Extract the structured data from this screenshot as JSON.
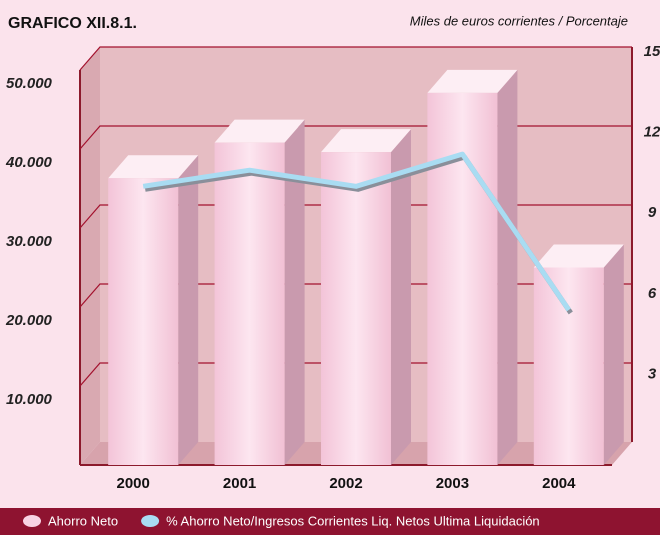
{
  "chart_data": {
    "type": "bar",
    "title": "GRAFICO XII.8.1.",
    "subtitle": "Miles de euros corrientes / Porcentaje",
    "categories": [
      "2000",
      "2001",
      "2002",
      "2003",
      "2004"
    ],
    "series": [
      {
        "name": "Ahorro Neto",
        "color": "#f8d3e3",
        "values": [
          36300,
          40800,
          39600,
          47100,
          25000
        ]
      },
      {
        "name": "% Ahorro Neto/Ingresos Corrientes Liq. Netos Ultima Liquidación",
        "color": "#a9dcf2",
        "type": "line",
        "axis": "y2",
        "values": [
          10.0,
          10.6,
          10.0,
          11.2,
          5.4
        ]
      }
    ],
    "ylim": [
      0,
      50000
    ],
    "yticks": [
      {
        "value": 10000,
        "label": "10.000"
      },
      {
        "value": 20000,
        "label": "20.000"
      },
      {
        "value": 30000,
        "label": "30.000"
      },
      {
        "value": 40000,
        "label": "40.000"
      },
      {
        "value": 50000,
        "label": "50.000"
      }
    ],
    "y2lim": [
      0,
      15
    ],
    "y2ticks": [
      3,
      6,
      9,
      12,
      15
    ],
    "grid": true
  }
}
